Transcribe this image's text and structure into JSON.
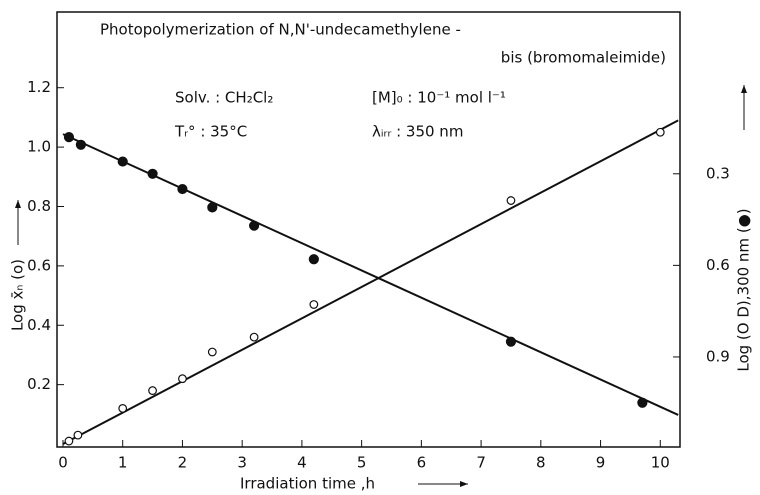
{
  "chart_data": {
    "type": "scatter",
    "title": "Photopolymerization of N,N'-undecamethylene -",
    "subtitle": "bis (bromomaleimide)",
    "annotations": [
      "Solv. : CH₂Cl₂",
      "[M]₀ : 10⁻¹ mol l⁻¹",
      "Tᵣ° : 35°C",
      "λᵢᵣᵣ : 350 nm"
    ],
    "x_label": "Irradiation time ,h",
    "y_label": "Log x̄ₙ (o)",
    "y2_label": "Log (O D),300 nm (●)",
    "xlim": [
      -0.1,
      10.33
    ],
    "xticks": [
      0,
      1,
      2,
      3,
      4,
      5,
      6,
      7,
      8,
      9,
      10
    ],
    "ylim": [
      -0.01,
      1.455
    ],
    "yticks": [
      0.2,
      0.4,
      0.6,
      0.8,
      {
        "value": 1,
        "label": "1.0"
      },
      1.2
    ],
    "y2lim": [
      1.195,
      -0.23
    ],
    "y2ticks": [
      0.3,
      0.6,
      0.9
    ],
    "color": "#111111",
    "series": [
      {
        "marker": "open",
        "x": [
          0.1,
          0.25,
          1,
          1.5,
          2,
          2.5,
          3.2,
          4.2,
          7.5,
          10
        ],
        "values": [
          0.01,
          0.03,
          0.12,
          0.18,
          0.22,
          0.31,
          0.36,
          0.47,
          0.82,
          1.05
        ],
        "fit": {
          "x": [
            0,
            10.3
          ],
          "values": [
            0,
            1.09
          ]
        }
      },
      {
        "marker": "filled",
        "axis": "y2",
        "x": [
          0.1,
          0.3,
          1,
          1.5,
          2,
          2.5,
          3.2,
          4.2,
          7.5,
          9.7
        ],
        "values": [
          0.18,
          0.205,
          0.26,
          0.3,
          0.35,
          0.41,
          0.47,
          0.58,
          0.85,
          1.05
        ],
        "fit": {
          "x": [
            0,
            10.3
          ],
          "values": [
            0.17,
            1.09
          ]
        }
      }
    ]
  }
}
